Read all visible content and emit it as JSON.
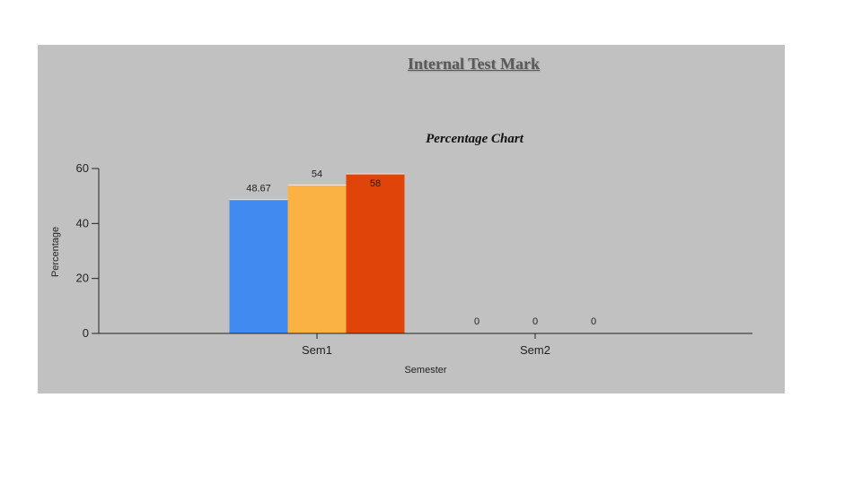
{
  "page": {
    "title": "Internal Test Mark",
    "background": "#c1c1c1"
  },
  "chart_data": {
    "type": "bar",
    "title": "Percentage Chart",
    "xlabel": "Semester",
    "ylabel": "Percentage",
    "categories": [
      "Sem1",
      "Sem2"
    ],
    "series": [
      {
        "color": "#418af0",
        "values": [
          48.67,
          0
        ]
      },
      {
        "color": "#fbb244",
        "values": [
          54,
          0
        ]
      },
      {
        "color": "#e04409",
        "values": [
          58,
          0
        ]
      }
    ],
    "data_labels": [
      [
        "48.67",
        "0"
      ],
      [
        "54",
        "0"
      ],
      [
        "58",
        "0"
      ]
    ],
    "ylim": [
      0,
      60
    ],
    "yticks": [
      0,
      20,
      40,
      60
    ],
    "grid": false,
    "legend": "none"
  }
}
